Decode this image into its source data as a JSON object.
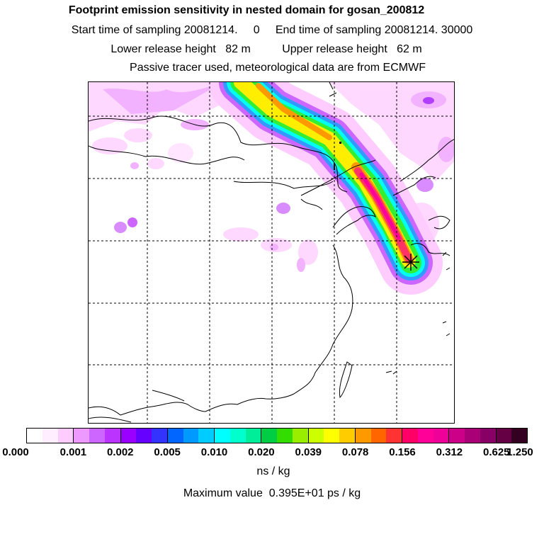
{
  "header": {
    "title": "Footprint emission sensitivity in nested domain for gosan_200812",
    "sampling": "Start time of sampling 20081214.     0     End time of sampling 20081214. 30000",
    "release": "Lower release height   82 m          Upper release height   62 m",
    "tracer": "Passive tracer used, meteorological data are from ECMWF"
  },
  "map": {
    "receptor_icon": "star-cross-icon",
    "colors": {
      "plume_outer": "#cc66ff",
      "plume_blue": "#3399ff",
      "plume_cyan": "#00ffee",
      "plume_green": "#33ee33",
      "plume_yellow": "#ffee00",
      "plume_orange": "#ff9900",
      "plume_red": "#ff3366",
      "plume_magenta": "#ff0099"
    }
  },
  "legend": {
    "colors": [
      "#ffffff",
      "#ffeeff",
      "#ffccff",
      "#ee99ff",
      "#cc66ff",
      "#bb33ff",
      "#9900ff",
      "#6600ff",
      "#3333ff",
      "#0066ff",
      "#0099ff",
      "#00ccff",
      "#00ffff",
      "#00ffcc",
      "#00ee99",
      "#00cc44",
      "#33dd00",
      "#99ee00",
      "#ccff00",
      "#ffff00",
      "#ffcc00",
      "#ff9900",
      "#ff6600",
      "#ff3333",
      "#ff0066",
      "#ff0099",
      "#ee0099",
      "#cc0088",
      "#aa0077",
      "#880066",
      "#660044",
      "#330022"
    ],
    "ticks": [
      "0.000",
      "0.001",
      "0.002",
      "0.005",
      "0.010",
      "0.020",
      "0.039",
      "0.078",
      "0.156",
      "0.312",
      "0.625",
      "1.250"
    ],
    "unit": "ns / kg",
    "maximum": "Maximum value  0.395E+01 ps / kg"
  }
}
